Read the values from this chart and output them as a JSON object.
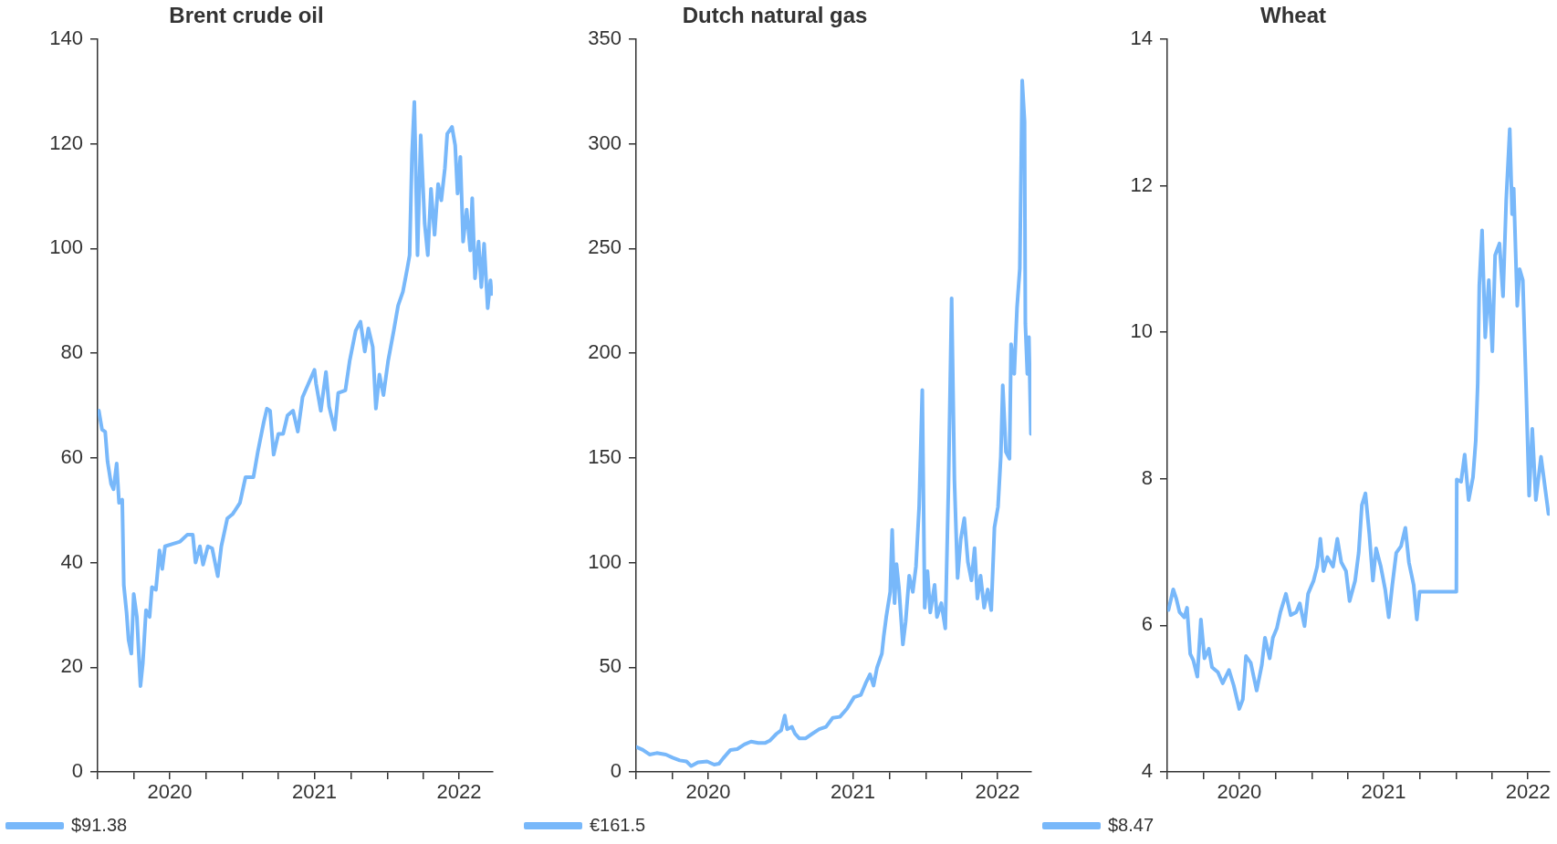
{
  "chart_data": [
    {
      "type": "line",
      "title": "Brent crude oil",
      "legend": "bottom left",
      "marker": "none",
      "x": [
        "2020-01-04",
        "2020-01-12",
        "2020-01-20",
        "2020-01-26",
        "2020-02-04",
        "2020-02-10",
        "2020-02-18",
        "2020-02-24",
        "2020-03-03",
        "2020-03-07",
        "2020-03-14",
        "2020-03-19",
        "2020-03-26",
        "2020-04-01",
        "2020-04-09",
        "2020-04-18",
        "2020-04-24",
        "2020-05-02",
        "2020-05-11",
        "2020-05-17",
        "2020-05-27",
        "2020-06-05",
        "2020-06-12",
        "2020-06-19",
        "2020-07-10",
        "2020-07-27",
        "2020-08-14",
        "2020-08-28",
        "2020-09-04",
        "2020-09-15",
        "2020-09-23",
        "2020-10-05",
        "2020-10-16",
        "2020-10-30",
        "2020-11-08",
        "2020-11-23",
        "2020-12-07",
        "2020-12-25",
        "2021-01-08",
        "2021-01-28",
        "2021-02-08",
        "2021-02-23",
        "2021-03-03",
        "2021-03-11",
        "2021-03-20",
        "2021-04-01",
        "2021-04-13",
        "2021-04-24",
        "2021-05-08",
        "2021-05-20",
        "2021-06-01",
        "2021-06-16",
        "2021-07-01",
        "2021-07-05",
        "2021-07-17",
        "2021-07-30",
        "2021-08-07",
        "2021-08-21",
        "2021-08-30",
        "2021-09-17",
        "2021-09-28",
        "2021-10-13",
        "2021-10-25",
        "2021-11-05",
        "2021-11-14",
        "2021-11-25",
        "2021-12-03",
        "2021-12-12",
        "2021-12-22",
        "2022-01-03",
        "2022-01-17",
        "2022-01-28",
        "2022-02-09",
        "2022-02-20",
        "2022-02-26",
        "2022-03-04",
        "2022-03-10",
        "2022-03-18",
        "2022-03-26",
        "2022-04-05",
        "2022-04-13",
        "2022-04-21",
        "2022-04-30",
        "2022-05-09",
        "2022-05-17",
        "2022-05-26",
        "2022-06-01",
        "2022-06-13",
        "2022-06-21",
        "2022-06-27",
        "2022-07-04",
        "2022-07-11",
        "2022-07-20",
        "2022-07-29",
        "2022-08-03",
        "2022-08-10",
        "2022-08-19",
        "2022-08-26",
        "2022-09-02",
        "2022-09-11",
        "2022-09-18",
        "2022-09-21"
      ],
      "series": [
        {
          "name": "$91.38",
          "color": "#78b8fa",
          "values": [
            69,
            65.4,
            65,
            59.3,
            55,
            54,
            58.9,
            51.4,
            52,
            35.7,
            30.4,
            25.2,
            22.6,
            34,
            29.6,
            16.4,
            20.8,
            30.9,
            29.6,
            35.3,
            34.8,
            42.3,
            38.8,
            43.1,
            43.6,
            44,
            45.3,
            45.3,
            40,
            43.1,
            39.6,
            43.1,
            42.7,
            37.4,
            43.1,
            48.4,
            49.3,
            51.4,
            56.3,
            56.3,
            61.1,
            66.8,
            69.4,
            69,
            60.6,
            64.6,
            64.6,
            68.1,
            69,
            65,
            71.6,
            74.2,
            76.8,
            74.2,
            69,
            76.4,
            69.8,
            65.4,
            72.4,
            72.9,
            78.6,
            84.3,
            86,
            80.3,
            84.7,
            81.2,
            69.4,
            75.9,
            72,
            78.6,
            84.3,
            89.1,
            91.7,
            96.1,
            98.7,
            117.9,
            128,
            98.7,
            121.6,
            104.8,
            98.7,
            111.4,
            102.6,
            112.3,
            109.2,
            115.3,
            121.9,
            123.2,
            119.7,
            110.5,
            117.5,
            101.3,
            107.4,
            99.6,
            109.6,
            94.3,
            101.3,
            92.6,
            100.9,
            88.6,
            93.9,
            91.3
          ]
        }
      ],
      "xlim": [
        "2020-01-01",
        "2022-09-24"
      ],
      "xticks": [
        {
          "value": "2020-01-01",
          "label": null
        },
        {
          "value": "2020-04-01",
          "label": null
        },
        {
          "value": "2020-07-01",
          "label": "2020"
        },
        {
          "value": "2020-10-01",
          "label": null
        },
        {
          "value": "2021-01-01",
          "label": null
        },
        {
          "value": "2021-04-01",
          "label": null
        },
        {
          "value": "2021-07-01",
          "label": "2021"
        },
        {
          "value": "2021-10-01",
          "label": null
        },
        {
          "value": "2022-01-01",
          "label": null
        },
        {
          "value": "2022-04-01",
          "label": null
        },
        {
          "value": "2022-07-01",
          "label": "2022"
        }
      ],
      "ylim": [
        0,
        140
      ],
      "yticks": [
        0,
        20,
        40,
        60,
        80,
        100,
        120,
        140
      ]
    },
    {
      "type": "line",
      "title": "Dutch natural gas",
      "legend": "bottom left",
      "marker": "none",
      "x": [
        "2020-01-01",
        "2020-01-18",
        "2020-02-04",
        "2020-02-22",
        "2020-03-16",
        "2020-04-02",
        "2020-04-20",
        "2020-05-07",
        "2020-05-19",
        "2020-06-05",
        "2020-06-28",
        "2020-07-16",
        "2020-07-28",
        "2020-08-08",
        "2020-08-26",
        "2020-09-12",
        "2020-09-30",
        "2020-10-17",
        "2020-11-04",
        "2020-11-21",
        "2020-12-03",
        "2020-12-20",
        "2021-01-01",
        "2021-01-10",
        "2021-01-16",
        "2021-01-28",
        "2021-02-05",
        "2021-02-16",
        "2021-03-03",
        "2021-03-20",
        "2021-04-07",
        "2021-04-24",
        "2021-05-11",
        "2021-05-29",
        "2021-06-16",
        "2021-07-04",
        "2021-07-21",
        "2021-08-02",
        "2021-08-13",
        "2021-08-22",
        "2021-08-31",
        "2021-09-12",
        "2021-09-17",
        "2021-09-23",
        "2021-10-03",
        "2021-10-08",
        "2021-10-14",
        "2021-10-19",
        "2021-10-25",
        "2021-11-04",
        "2021-11-11",
        "2021-11-20",
        "2021-11-29",
        "2021-12-07",
        "2021-12-15",
        "2021-12-23",
        "2021-12-29",
        "2022-01-05",
        "2022-01-12",
        "2022-01-23",
        "2022-01-29",
        "2022-02-09",
        "2022-02-19",
        "2022-02-27",
        "2022-03-07",
        "2022-03-14",
        "2022-03-22",
        "2022-03-30",
        "2022-04-08",
        "2022-04-17",
        "2022-04-26",
        "2022-05-04",
        "2022-05-11",
        "2022-05-19",
        "2022-05-28",
        "2022-06-06",
        "2022-06-15",
        "2022-06-23",
        "2022-07-02",
        "2022-07-09",
        "2022-07-14",
        "2022-07-22",
        "2022-07-31",
        "2022-08-04",
        "2022-08-12",
        "2022-08-19",
        "2022-08-26",
        "2022-09-01",
        "2022-09-07",
        "2022-09-09",
        "2022-09-14",
        "2022-09-18",
        "2022-09-23"
      ],
      "series": [
        {
          "name": "€161.5",
          "color": "#78b8fa",
          "values": [
            12,
            10.5,
            8.3,
            9,
            8.3,
            6.8,
            5.5,
            5,
            2.8,
            4.6,
            5,
            3.5,
            3.9,
            6.6,
            10.5,
            10.9,
            13.1,
            14.5,
            13.8,
            13.8,
            14.9,
            18.2,
            19.9,
            26.9,
            20.4,
            21.5,
            18.2,
            16,
            16,
            18.2,
            20.4,
            21.5,
            25.8,
            26.3,
            30.2,
            35.7,
            36.8,
            42.3,
            46.6,
            41.2,
            49.9,
            56.5,
            65.3,
            74,
            86,
            115.6,
            80.6,
            99.2,
            88.2,
            60.9,
            71.8,
            93.7,
            86,
            98.1,
            126.6,
            182.4,
            78.4,
            95.9,
            76.2,
            89.3,
            74,
            80.6,
            68.5,
            136.4,
            226.2,
            139.7,
            92.6,
            111.2,
            121.1,
            100.3,
            91.5,
            106.9,
            82.8,
            93.7,
            78.4,
            87.1,
            77.3,
            116.7,
            126.6,
            150.6,
            184.6,
            152.8,
            149.6,
            204.3,
            190.1,
            221.8,
            240.4,
            330.2,
            310.5,
            214.1,
            190.1,
            207.6,
            161.5
          ]
        }
      ],
      "xlim": [
        "2020-01-01",
        "2022-09-24"
      ],
      "xticks": [
        {
          "value": "2020-01-01",
          "label": null
        },
        {
          "value": "2020-04-01",
          "label": null
        },
        {
          "value": "2020-07-01",
          "label": "2020"
        },
        {
          "value": "2020-10-01",
          "label": null
        },
        {
          "value": "2021-01-01",
          "label": null
        },
        {
          "value": "2021-04-01",
          "label": null
        },
        {
          "value": "2021-07-01",
          "label": "2021"
        },
        {
          "value": "2021-10-01",
          "label": null
        },
        {
          "value": "2022-01-01",
          "label": null
        },
        {
          "value": "2022-04-01",
          "label": null
        },
        {
          "value": "2022-07-01",
          "label": "2022"
        }
      ],
      "ylim": [
        0,
        350
      ],
      "yticks": [
        0,
        50,
        100,
        150,
        200,
        250,
        300,
        350
      ]
    },
    {
      "type": "line",
      "title": "Wheat",
      "legend": "bottom left",
      "marker": "none",
      "x": [
        "2020-01-04",
        "2020-01-16",
        "2020-01-24",
        "2020-02-01",
        "2020-02-13",
        "2020-02-20",
        "2020-02-28",
        "2020-03-07",
        "2020-03-17",
        "2020-03-26",
        "2020-04-04",
        "2020-04-15",
        "2020-04-23",
        "2020-05-08",
        "2020-05-20",
        "2020-06-05",
        "2020-06-17",
        "2020-07-01",
        "2020-07-10",
        "2020-07-18",
        "2020-07-30",
        "2020-08-14",
        "2020-08-27",
        "2020-09-04",
        "2020-09-16",
        "2020-09-24",
        "2020-10-04",
        "2020-10-13",
        "2020-10-27",
        "2020-11-08",
        "2020-11-22",
        "2020-12-01",
        "2020-12-13",
        "2020-12-22",
        "2021-01-05",
        "2021-01-14",
        "2021-01-22",
        "2021-01-30",
        "2021-02-09",
        "2021-02-23",
        "2021-03-06",
        "2021-03-16",
        "2021-03-28",
        "2021-04-06",
        "2021-04-20",
        "2021-04-29",
        "2021-05-07",
        "2021-05-16",
        "2021-05-26",
        "2021-06-04",
        "2021-06-12",
        "2021-06-24",
        "2021-07-05",
        "2021-07-14",
        "2021-07-23",
        "2021-08-02",
        "2021-08-14",
        "2021-08-25",
        "2021-09-03",
        "2021-09-15",
        "2021-09-23",
        "2021-09-30",
        "2022-01-01",
        "2022-01-02",
        "2022-01-13",
        "2022-01-22",
        "2022-02-01",
        "2022-02-12",
        "2022-02-19",
        "2022-02-24",
        "2022-02-28",
        "2022-03-07",
        "2022-03-15",
        "2022-03-24",
        "2022-04-02",
        "2022-04-09",
        "2022-04-20",
        "2022-04-29",
        "2022-05-07",
        "2022-05-16",
        "2022-05-22",
        "2022-05-26",
        "2022-06-04",
        "2022-06-10",
        "2022-06-18",
        "2022-06-26",
        "2022-07-04",
        "2022-07-12",
        "2022-07-21",
        "2022-08-03",
        "2022-08-13",
        "2022-08-22"
      ],
      "series": [
        {
          "name": "$8.47",
          "color": "#78b8fa",
          "values": [
            6.21,
            6.49,
            6.36,
            6.18,
            6.11,
            6.24,
            5.61,
            5.52,
            5.3,
            6.08,
            5.55,
            5.68,
            5.43,
            5.36,
            5.21,
            5.39,
            5.18,
            4.86,
            4.99,
            5.58,
            5.49,
            5.11,
            5.46,
            5.83,
            5.55,
            5.83,
            5.96,
            6.18,
            6.43,
            6.14,
            6.18,
            6.3,
            5.99,
            6.43,
            6.61,
            6.8,
            7.18,
            6.74,
            6.93,
            6.8,
            7.18,
            6.86,
            6.74,
            6.33,
            6.61,
            6.99,
            7.64,
            7.8,
            7.24,
            6.61,
            7.05,
            6.8,
            6.49,
            6.11,
            6.55,
            6.99,
            7.08,
            7.33,
            6.86,
            6.55,
            6.08,
            6.46,
            6.46,
            7.99,
            7.96,
            8.33,
            7.71,
            8.02,
            8.52,
            9.3,
            10.64,
            11.39,
            9.93,
            10.71,
            9.74,
            11.05,
            11.21,
            10.49,
            11.8,
            12.77,
            11.61,
            11.96,
            10.36,
            10.86,
            10.71,
            9.3,
            7.77,
            8.68,
            7.71,
            8.3,
            7.89,
            7.52
          ]
        }
      ],
      "xlim": [
        "2020-01-01",
        "2022-08-25"
      ],
      "xticks": [
        {
          "value": "2020-01-01",
          "label": null
        },
        {
          "value": "2020-04-01",
          "label": null
        },
        {
          "value": "2020-07-01",
          "label": "2020"
        },
        {
          "value": "2020-10-01",
          "label": null
        },
        {
          "value": "2021-01-01",
          "label": null
        },
        {
          "value": "2021-04-01",
          "label": null
        },
        {
          "value": "2021-07-01",
          "label": "2021"
        },
        {
          "value": "2021-10-01",
          "label": null
        },
        {
          "value": "2022-01-01",
          "label": null
        },
        {
          "value": "2022-04-01",
          "label": null
        },
        {
          "value": "2022-07-01",
          "label": "2022"
        }
      ],
      "ylim": [
        4,
        14
      ],
      "yticks": [
        4,
        6,
        8,
        10,
        12,
        14
      ]
    }
  ]
}
